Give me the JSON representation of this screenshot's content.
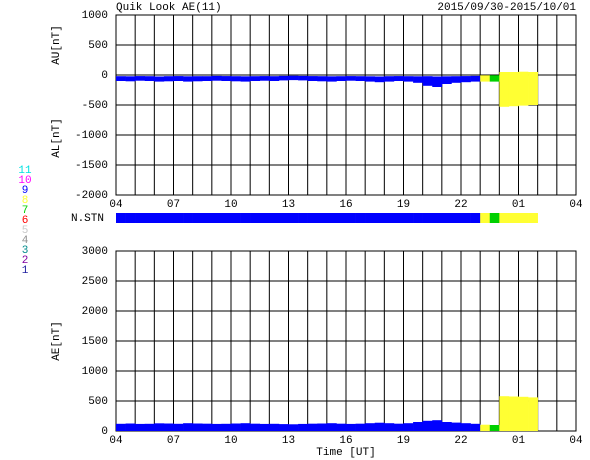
{
  "chart_data": [
    {
      "type": "band",
      "title": "Quik Look AE(11)",
      "date": "2015/09/30-2015/10/01",
      "ylabel_upper": "AU[nT]",
      "ylabel_lower": "AL[nT]",
      "xlim": [
        0,
        24
      ],
      "xticks": [
        {
          "value": 0,
          "label": "04"
        },
        {
          "value": 3,
          "label": "07"
        },
        {
          "value": 6,
          "label": "10"
        },
        {
          "value": 9,
          "label": "13"
        },
        {
          "value": 12,
          "label": "16"
        },
        {
          "value": 15,
          "label": "19"
        },
        {
          "value": 18,
          "label": "22"
        },
        {
          "value": 21,
          "label": "01"
        },
        {
          "value": 24,
          "label": "04"
        }
      ],
      "xgrid": [
        0,
        1,
        2,
        3,
        4,
        5,
        6,
        7,
        8,
        9,
        10,
        11,
        12,
        13,
        14,
        15,
        16,
        17,
        18,
        19,
        20,
        21,
        22,
        23,
        24
      ],
      "ylim": [
        -2000,
        1000
      ],
      "yticks": [
        -2000,
        -1500,
        -1000,
        -500,
        0,
        500,
        1000
      ],
      "x": [
        0,
        0.5,
        1,
        1.5,
        2,
        2.5,
        3,
        3.5,
        4,
        4.5,
        5,
        5.5,
        6,
        6.5,
        7,
        7.5,
        8,
        8.5,
        9,
        9.5,
        10,
        10.5,
        11,
        11.5,
        12,
        12.5,
        13,
        13.5,
        14,
        14.5,
        15,
        15.5,
        16,
        16.5,
        17,
        17.5,
        18,
        18.5,
        19,
        19.5,
        20,
        20.5,
        21,
        21.5
      ],
      "series": [
        {
          "values": [
            -20,
            -22,
            -18,
            -20,
            -25,
            -20,
            -18,
            -22,
            -20,
            -20,
            -15,
            -18,
            -20,
            -22,
            -20,
            -18,
            -20,
            -15,
            -12,
            -15,
            -18,
            -20,
            -22,
            -20,
            -18,
            -20,
            -22,
            -25,
            -20,
            -18,
            -20,
            -22,
            -20,
            -25,
            -22,
            -20,
            -18,
            -15,
            -5,
            -5,
            50,
            50,
            55,
            50
          ]
        },
        {
          "values": [
            -100,
            -105,
            -95,
            -100,
            -110,
            -105,
            -100,
            -110,
            -105,
            -100,
            -95,
            -100,
            -105,
            -110,
            -100,
            -95,
            -100,
            -90,
            -85,
            -90,
            -100,
            -105,
            -110,
            -100,
            -95,
            -100,
            -110,
            -120,
            -110,
            -100,
            -110,
            -130,
            -180,
            -200,
            -150,
            -130,
            -120,
            -110,
            -110,
            -110,
            -530,
            -520,
            -510,
            -500
          ]
        }
      ]
    },
    {
      "type": "strip",
      "label": "N.STN",
      "x": [
        0,
        0.5,
        1,
        1.5,
        2,
        2.5,
        3,
        3.5,
        4,
        4.5,
        5,
        5.5,
        6,
        6.5,
        7,
        7.5,
        8,
        8.5,
        9,
        9.5,
        10,
        10.5,
        11,
        11.5,
        12,
        12.5,
        13,
        13.5,
        14,
        14.5,
        15,
        15.5,
        16,
        16.5,
        17,
        17.5,
        18,
        18.5,
        19,
        19.5,
        20,
        20.5,
        21,
        21.5
      ],
      "values": [
        9,
        9,
        9,
        9,
        9,
        9,
        9,
        9,
        9,
        9,
        9,
        9,
        9,
        9,
        9,
        9,
        9,
        9,
        9,
        9,
        9,
        9,
        9,
        9,
        9,
        9,
        9,
        9,
        9,
        9,
        9,
        9,
        9,
        9,
        9,
        9,
        9,
        9,
        8,
        7,
        8,
        8,
        8,
        8
      ],
      "legend": [
        {
          "count": 11,
          "color": "#00e0e0"
        },
        {
          "count": 10,
          "color": "#ff00ff"
        },
        {
          "count": 9,
          "color": "#0000ff"
        },
        {
          "count": 8,
          "color": "#ffff33"
        },
        {
          "count": 7,
          "color": "#00d000"
        },
        {
          "count": 6,
          "color": "#ff0000"
        },
        {
          "count": 5,
          "color": "#c8c8c8"
        },
        {
          "count": 4,
          "color": "#909090"
        },
        {
          "count": 3,
          "color": "#008b8b"
        },
        {
          "count": 2,
          "color": "#8000a0"
        },
        {
          "count": 1,
          "color": "#2020a0"
        }
      ]
    },
    {
      "type": "bar",
      "ylabel": "AE[nT]",
      "xlabel": "Time [UT]",
      "xlim": [
        0,
        24
      ],
      "xticks": [
        {
          "value": 0,
          "label": "04"
        },
        {
          "value": 3,
          "label": "07"
        },
        {
          "value": 6,
          "label": "10"
        },
        {
          "value": 9,
          "label": "13"
        },
        {
          "value": 12,
          "label": "16"
        },
        {
          "value": 15,
          "label": "19"
        },
        {
          "value": 18,
          "label": "22"
        },
        {
          "value": 21,
          "label": "01"
        },
        {
          "value": 24,
          "label": "04"
        }
      ],
      "xgrid": [
        0,
        1,
        2,
        3,
        4,
        5,
        6,
        7,
        8,
        9,
        10,
        11,
        12,
        13,
        14,
        15,
        16,
        17,
        18,
        19,
        20,
        21,
        22,
        23,
        24
      ],
      "ylim": [
        0,
        3000
      ],
      "yticks": [
        0,
        500,
        1000,
        1500,
        2000,
        2500,
        3000
      ],
      "x": [
        0,
        0.5,
        1,
        1.5,
        2,
        2.5,
        3,
        3.5,
        4,
        4.5,
        5,
        5.5,
        6,
        6.5,
        7,
        7.5,
        8,
        8.5,
        9,
        9.5,
        10,
        10.5,
        11,
        11.5,
        12,
        12.5,
        13,
        13.5,
        14,
        14.5,
        15,
        15.5,
        16,
        16.5,
        17,
        17.5,
        18,
        18.5,
        19,
        19.5,
        20,
        20.5,
        21,
        21.5
      ],
      "values": [
        120,
        125,
        118,
        120,
        128,
        125,
        120,
        130,
        125,
        122,
        118,
        120,
        125,
        130,
        122,
        118,
        120,
        115,
        112,
        118,
        122,
        125,
        130,
        122,
        118,
        122,
        130,
        138,
        130,
        122,
        130,
        150,
        170,
        180,
        150,
        140,
        130,
        120,
        105,
        100,
        580,
        575,
        570,
        560
      ]
    }
  ]
}
